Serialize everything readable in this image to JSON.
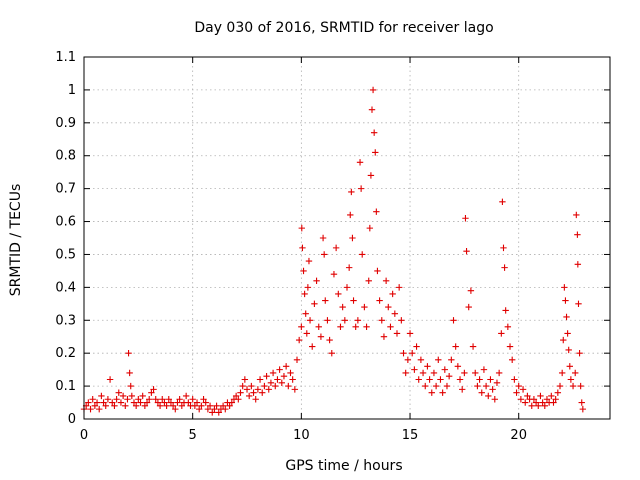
{
  "chart_data": {
    "type": "scatter",
    "title": "Day 030 of 2016, SRMTID for receiver lago",
    "xlabel": "GPS time / hours",
    "ylabel": "SRMTID / TECUs",
    "xlim": [
      0,
      24.2
    ],
    "ylim": [
      0,
      1.1
    ],
    "xticks": [
      0,
      5,
      10,
      15,
      20
    ],
    "xtick_labels": [
      "0",
      "5",
      "10",
      "15",
      "20"
    ],
    "yticks": [
      0,
      0.1,
      0.2,
      0.3,
      0.4,
      0.5,
      0.6,
      0.7,
      0.8,
      0.9,
      1.0,
      1.1
    ],
    "ytick_labels": [
      "0",
      "0.1",
      "0.2",
      "0.3",
      "0.4",
      "0.5",
      "0.6",
      "0.7",
      "0.8",
      "0.9",
      "1",
      "1.1"
    ],
    "grid": true,
    "marker": "plus",
    "color": "#e00000",
    "series": [
      {
        "name": "SRMTID",
        "points": [
          [
            0.0,
            0.03
          ],
          [
            0.1,
            0.04
          ],
          [
            0.2,
            0.05
          ],
          [
            0.3,
            0.03
          ],
          [
            0.4,
            0.06
          ],
          [
            0.5,
            0.04
          ],
          [
            0.6,
            0.05
          ],
          [
            0.7,
            0.03
          ],
          [
            0.8,
            0.07
          ],
          [
            0.9,
            0.05
          ],
          [
            1.0,
            0.04
          ],
          [
            1.1,
            0.06
          ],
          [
            1.2,
            0.12
          ],
          [
            1.3,
            0.05
          ],
          [
            1.4,
            0.04
          ],
          [
            1.5,
            0.06
          ],
          [
            1.6,
            0.08
          ],
          [
            1.7,
            0.05
          ],
          [
            1.8,
            0.07
          ],
          [
            1.9,
            0.04
          ],
          [
            2.0,
            0.06
          ],
          [
            2.05,
            0.2
          ],
          [
            2.1,
            0.14
          ],
          [
            2.15,
            0.1
          ],
          [
            2.2,
            0.07
          ],
          [
            2.3,
            0.05
          ],
          [
            2.4,
            0.04
          ],
          [
            2.5,
            0.06
          ],
          [
            2.6,
            0.05
          ],
          [
            2.7,
            0.07
          ],
          [
            2.8,
            0.04
          ],
          [
            2.9,
            0.05
          ],
          [
            3.0,
            0.06
          ],
          [
            3.1,
            0.08
          ],
          [
            3.2,
            0.09
          ],
          [
            3.3,
            0.06
          ],
          [
            3.4,
            0.05
          ],
          [
            3.5,
            0.04
          ],
          [
            3.6,
            0.06
          ],
          [
            3.7,
            0.05
          ],
          [
            3.8,
            0.04
          ],
          [
            3.9,
            0.06
          ],
          [
            4.0,
            0.05
          ],
          [
            4.1,
            0.04
          ],
          [
            4.2,
            0.03
          ],
          [
            4.3,
            0.05
          ],
          [
            4.4,
            0.06
          ],
          [
            4.5,
            0.04
          ],
          [
            4.6,
            0.05
          ],
          [
            4.7,
            0.07
          ],
          [
            4.8,
            0.05
          ],
          [
            4.9,
            0.04
          ],
          [
            5.0,
            0.06
          ],
          [
            5.1,
            0.04
          ],
          [
            5.2,
            0.05
          ],
          [
            5.3,
            0.03
          ],
          [
            5.4,
            0.04
          ],
          [
            5.5,
            0.06
          ],
          [
            5.6,
            0.05
          ],
          [
            5.7,
            0.03
          ],
          [
            5.8,
            0.04
          ],
          [
            5.9,
            0.02
          ],
          [
            6.0,
            0.03
          ],
          [
            6.1,
            0.04
          ],
          [
            6.2,
            0.02
          ],
          [
            6.3,
            0.03
          ],
          [
            6.4,
            0.04
          ],
          [
            6.5,
            0.03
          ],
          [
            6.6,
            0.05
          ],
          [
            6.7,
            0.04
          ],
          [
            6.8,
            0.05
          ],
          [
            6.9,
            0.06
          ],
          [
            7.0,
            0.07
          ],
          [
            7.1,
            0.06
          ],
          [
            7.2,
            0.08
          ],
          [
            7.3,
            0.1
          ],
          [
            7.4,
            0.12
          ],
          [
            7.5,
            0.09
          ],
          [
            7.6,
            0.07
          ],
          [
            7.7,
            0.1
          ],
          [
            7.8,
            0.08
          ],
          [
            7.9,
            0.06
          ],
          [
            8.0,
            0.09
          ],
          [
            8.1,
            0.12
          ],
          [
            8.2,
            0.08
          ],
          [
            8.3,
            0.1
          ],
          [
            8.4,
            0.13
          ],
          [
            8.5,
            0.09
          ],
          [
            8.6,
            0.11
          ],
          [
            8.7,
            0.14
          ],
          [
            8.8,
            0.1
          ],
          [
            8.9,
            0.12
          ],
          [
            9.0,
            0.15
          ],
          [
            9.1,
            0.11
          ],
          [
            9.2,
            0.13
          ],
          [
            9.3,
            0.16
          ],
          [
            9.4,
            0.1
          ],
          [
            9.5,
            0.14
          ],
          [
            9.6,
            0.12
          ],
          [
            9.7,
            0.09
          ],
          [
            9.8,
            0.18
          ],
          [
            9.9,
            0.24
          ],
          [
            10.0,
            0.28
          ],
          [
            10.02,
            0.58
          ],
          [
            10.05,
            0.52
          ],
          [
            10.1,
            0.45
          ],
          [
            10.15,
            0.38
          ],
          [
            10.2,
            0.32
          ],
          [
            10.25,
            0.26
          ],
          [
            10.3,
            0.4
          ],
          [
            10.35,
            0.48
          ],
          [
            10.4,
            0.3
          ],
          [
            10.5,
            0.22
          ],
          [
            10.6,
            0.35
          ],
          [
            10.7,
            0.42
          ],
          [
            10.8,
            0.28
          ],
          [
            10.9,
            0.25
          ],
          [
            11.0,
            0.55
          ],
          [
            11.05,
            0.5
          ],
          [
            11.1,
            0.36
          ],
          [
            11.2,
            0.3
          ],
          [
            11.3,
            0.24
          ],
          [
            11.4,
            0.2
          ],
          [
            11.5,
            0.44
          ],
          [
            11.6,
            0.52
          ],
          [
            11.7,
            0.38
          ],
          [
            11.8,
            0.28
          ],
          [
            11.9,
            0.34
          ],
          [
            12.0,
            0.3
          ],
          [
            12.1,
            0.4
          ],
          [
            12.2,
            0.46
          ],
          [
            12.25,
            0.62
          ],
          [
            12.3,
            0.69
          ],
          [
            12.35,
            0.55
          ],
          [
            12.4,
            0.36
          ],
          [
            12.5,
            0.28
          ],
          [
            12.6,
            0.3
          ],
          [
            12.7,
            0.78
          ],
          [
            12.75,
            0.7
          ],
          [
            12.8,
            0.5
          ],
          [
            12.9,
            0.34
          ],
          [
            13.0,
            0.28
          ],
          [
            13.1,
            0.42
          ],
          [
            13.15,
            0.58
          ],
          [
            13.2,
            0.74
          ],
          [
            13.25,
            0.94
          ],
          [
            13.3,
            1.0
          ],
          [
            13.35,
            0.87
          ],
          [
            13.4,
            0.81
          ],
          [
            13.45,
            0.63
          ],
          [
            13.5,
            0.45
          ],
          [
            13.6,
            0.36
          ],
          [
            13.7,
            0.3
          ],
          [
            13.8,
            0.25
          ],
          [
            13.9,
            0.42
          ],
          [
            14.0,
            0.34
          ],
          [
            14.1,
            0.28
          ],
          [
            14.2,
            0.38
          ],
          [
            14.3,
            0.32
          ],
          [
            14.4,
            0.26
          ],
          [
            14.5,
            0.4
          ],
          [
            14.6,
            0.3
          ],
          [
            14.7,
            0.2
          ],
          [
            14.8,
            0.14
          ],
          [
            14.9,
            0.18
          ],
          [
            15.0,
            0.26
          ],
          [
            15.1,
            0.2
          ],
          [
            15.2,
            0.15
          ],
          [
            15.3,
            0.22
          ],
          [
            15.4,
            0.12
          ],
          [
            15.5,
            0.18
          ],
          [
            15.6,
            0.14
          ],
          [
            15.7,
            0.1
          ],
          [
            15.8,
            0.16
          ],
          [
            15.9,
            0.12
          ],
          [
            16.0,
            0.08
          ],
          [
            16.1,
            0.14
          ],
          [
            16.2,
            0.1
          ],
          [
            16.3,
            0.18
          ],
          [
            16.4,
            0.12
          ],
          [
            16.5,
            0.08
          ],
          [
            16.6,
            0.15
          ],
          [
            16.7,
            0.1
          ],
          [
            16.8,
            0.13
          ],
          [
            16.9,
            0.18
          ],
          [
            17.0,
            0.3
          ],
          [
            17.1,
            0.22
          ],
          [
            17.2,
            0.16
          ],
          [
            17.3,
            0.12
          ],
          [
            17.4,
            0.09
          ],
          [
            17.5,
            0.14
          ],
          [
            17.55,
            0.61
          ],
          [
            17.6,
            0.51
          ],
          [
            17.7,
            0.34
          ],
          [
            17.8,
            0.39
          ],
          [
            17.9,
            0.22
          ],
          [
            18.0,
            0.14
          ],
          [
            18.1,
            0.1
          ],
          [
            18.2,
            0.12
          ],
          [
            18.3,
            0.08
          ],
          [
            18.4,
            0.15
          ],
          [
            18.5,
            0.1
          ],
          [
            18.6,
            0.07
          ],
          [
            18.7,
            0.12
          ],
          [
            18.8,
            0.09
          ],
          [
            18.9,
            0.06
          ],
          [
            19.0,
            0.11
          ],
          [
            19.1,
            0.14
          ],
          [
            19.2,
            0.26
          ],
          [
            19.25,
            0.66
          ],
          [
            19.3,
            0.52
          ],
          [
            19.35,
            0.46
          ],
          [
            19.4,
            0.33
          ],
          [
            19.5,
            0.28
          ],
          [
            19.6,
            0.22
          ],
          [
            19.7,
            0.18
          ],
          [
            19.8,
            0.12
          ],
          [
            19.9,
            0.08
          ],
          [
            20.0,
            0.1
          ],
          [
            20.1,
            0.06
          ],
          [
            20.2,
            0.09
          ],
          [
            20.3,
            0.05
          ],
          [
            20.4,
            0.07
          ],
          [
            20.5,
            0.06
          ],
          [
            20.6,
            0.04
          ],
          [
            20.7,
            0.06
          ],
          [
            20.8,
            0.05
          ],
          [
            20.9,
            0.04
          ],
          [
            21.0,
            0.07
          ],
          [
            21.1,
            0.05
          ],
          [
            21.2,
            0.04
          ],
          [
            21.3,
            0.06
          ],
          [
            21.4,
            0.05
          ],
          [
            21.5,
            0.07
          ],
          [
            21.6,
            0.05
          ],
          [
            21.7,
            0.06
          ],
          [
            21.8,
            0.08
          ],
          [
            21.9,
            0.1
          ],
          [
            22.0,
            0.14
          ],
          [
            22.05,
            0.24
          ],
          [
            22.1,
            0.4
          ],
          [
            22.15,
            0.36
          ],
          [
            22.2,
            0.31
          ],
          [
            22.25,
            0.26
          ],
          [
            22.3,
            0.21
          ],
          [
            22.35,
            0.16
          ],
          [
            22.4,
            0.12
          ],
          [
            22.5,
            0.1
          ],
          [
            22.6,
            0.14
          ],
          [
            22.65,
            0.62
          ],
          [
            22.7,
            0.56
          ],
          [
            22.72,
            0.47
          ],
          [
            22.75,
            0.35
          ],
          [
            22.8,
            0.2
          ],
          [
            22.85,
            0.1
          ],
          [
            22.9,
            0.05
          ],
          [
            22.95,
            0.03
          ]
        ]
      }
    ]
  }
}
